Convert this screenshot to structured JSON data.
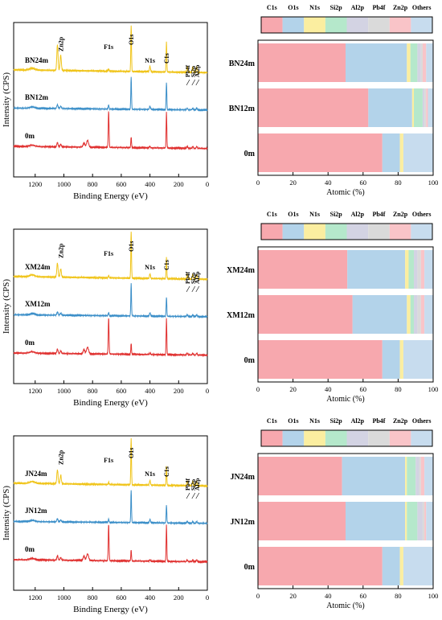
{
  "chart_data": [
    {
      "type": "line",
      "xlabel": "Binding Energy (eV)",
      "ylabel": "Intensity (CPS)",
      "xlim": [
        1350,
        0
      ],
      "xticks": [
        1200,
        1000,
        800,
        600,
        400,
        200,
        0
      ],
      "peak_labels": [
        {
          "text": "Zn2p",
          "x": 1022
        },
        {
          "text": "F1s",
          "x": 688
        },
        {
          "text": "O1s",
          "x": 531
        },
        {
          "text": "N1s",
          "x": 400
        },
        {
          "text": "C1s",
          "x": 285
        },
        {
          "text": "Pb4f",
          "x": 140
        },
        {
          "text": "Si2p",
          "x": 102
        },
        {
          "text": "Al2p",
          "x": 74
        }
      ],
      "series": [
        {
          "name": "BN24m",
          "color": "#f0c419",
          "peaks": {
            "zn": 0.55,
            "f": 0.05,
            "o": 1.0,
            "n": 0.12,
            "c": 0.65,
            "small": 0.12
          }
        },
        {
          "name": "BN12m",
          "color": "#3a8ec8",
          "peaks": {
            "zn": 0.12,
            "f": 0.12,
            "o": 1.0,
            "n": 0.1,
            "c": 0.85,
            "small": 0.05
          }
        },
        {
          "name": "0m",
          "color": "#e0302f",
          "peaks": {
            "zn": 0.12,
            "f": 1.0,
            "o": 0.3,
            "n": 0.04,
            "c": 1.0,
            "small": 0.05
          }
        }
      ]
    },
    {
      "type": "bar",
      "stacked": true,
      "xlabel": "Atomic (%)",
      "xlim": [
        0,
        100
      ],
      "xticks": [
        0,
        20,
        40,
        60,
        80,
        100
      ],
      "legend": [
        "C1s",
        "O1s",
        "N1s",
        "Si2p",
        "Al2p",
        "Pb4f",
        "Zn2p",
        "Others"
      ],
      "colors": [
        "#f7a8ae",
        "#b3d3ea",
        "#fbeea0",
        "#b5e8cb",
        "#d3d3e3",
        "#dadada",
        "#f9c4c8",
        "#c7dcee"
      ],
      "categories": [
        "BN24m",
        "BN12m",
        "0m"
      ],
      "series": [
        {
          "name": "C1s",
          "values": [
            50,
            63,
            71
          ]
        },
        {
          "name": "O1s",
          "values": [
            35,
            25,
            10
          ]
        },
        {
          "name": "N1s",
          "values": [
            2,
            1,
            2
          ]
        },
        {
          "name": "Si2p",
          "values": [
            4,
            5,
            0
          ]
        },
        {
          "name": "Al2p",
          "values": [
            2,
            1,
            0
          ]
        },
        {
          "name": "Pb4f",
          "values": [
            1,
            1,
            0
          ]
        },
        {
          "name": "Zn2p",
          "values": [
            2,
            1,
            0
          ]
        },
        {
          "name": "Others",
          "values": [
            4,
            3,
            17
          ]
        }
      ]
    },
    {
      "type": "line",
      "xlabel": "Binding Energy (eV)",
      "ylabel": "Intensity (CPS)",
      "xlim": [
        1350,
        0
      ],
      "xticks": [
        1200,
        1000,
        800,
        600,
        400,
        200,
        0
      ],
      "peak_labels": [
        {
          "text": "Zn2p",
          "x": 1022
        },
        {
          "text": "F1s",
          "x": 688
        },
        {
          "text": "O1s",
          "x": 531
        },
        {
          "text": "N1s",
          "x": 400
        },
        {
          "text": "C1s",
          "x": 285
        },
        {
          "text": "Pb4f",
          "x": 140
        },
        {
          "text": "Si2p",
          "x": 102
        },
        {
          "text": "Al2p",
          "x": 74
        }
      ],
      "series": [
        {
          "name": "XM24m",
          "color": "#f0c419",
          "peaks": {
            "zn": 0.3,
            "f": 0.05,
            "o": 1.0,
            "n": 0.1,
            "c": 0.45,
            "small": 0.1
          }
        },
        {
          "name": "XM12m",
          "color": "#3a8ec8",
          "peaks": {
            "zn": 0.1,
            "f": 0.1,
            "o": 1.0,
            "n": 0.1,
            "c": 0.6,
            "small": 0.05
          }
        },
        {
          "name": "0m",
          "color": "#e0302f",
          "peaks": {
            "zn": 0.12,
            "f": 1.0,
            "o": 0.3,
            "n": 0.04,
            "c": 1.0,
            "small": 0.05
          }
        }
      ]
    },
    {
      "type": "bar",
      "stacked": true,
      "xlabel": "Atomic (%)",
      "xlim": [
        0,
        100
      ],
      "xticks": [
        0,
        20,
        40,
        60,
        80,
        100
      ],
      "legend": [
        "C1s",
        "O1s",
        "N1s",
        "Si2p",
        "Al2p",
        "Pb4f",
        "Zn2p",
        "Others"
      ],
      "colors": [
        "#f7a8ae",
        "#b3d3ea",
        "#fbeea0",
        "#b5e8cb",
        "#d3d3e3",
        "#dadada",
        "#f9c4c8",
        "#c7dcee"
      ],
      "categories": [
        "XM24m",
        "XM12m",
        "0m"
      ],
      "series": [
        {
          "name": "C1s",
          "values": [
            51,
            54,
            71
          ]
        },
        {
          "name": "O1s",
          "values": [
            33,
            31,
            10
          ]
        },
        {
          "name": "N1s",
          "values": [
            2,
            2,
            2
          ]
        },
        {
          "name": "Si2p",
          "values": [
            3,
            2,
            0
          ]
        },
        {
          "name": "Al2p",
          "values": [
            2,
            2,
            0
          ]
        },
        {
          "name": "Pb4f",
          "values": [
            2,
            2,
            0
          ]
        },
        {
          "name": "Zn2p",
          "values": [
            2,
            2,
            0
          ]
        },
        {
          "name": "Others",
          "values": [
            5,
            5,
            17
          ]
        }
      ]
    },
    {
      "type": "line",
      "xlabel": "Binding Energy (eV)",
      "ylabel": "Intensity (CPS)",
      "xlim": [
        1350,
        0
      ],
      "xticks": [
        1200,
        1000,
        800,
        600,
        400,
        200,
        0
      ],
      "peak_labels": [
        {
          "text": "Zn2p",
          "x": 1022
        },
        {
          "text": "F1s",
          "x": 688
        },
        {
          "text": "O1s",
          "x": 531
        },
        {
          "text": "N1s",
          "x": 400
        },
        {
          "text": "C1s",
          "x": 285
        },
        {
          "text": "Pb4f",
          "x": 140
        },
        {
          "text": "Si2p",
          "x": 102
        },
        {
          "text": "Al2p",
          "x": 74
        }
      ],
      "series": [
        {
          "name": "JN24m",
          "color": "#f0c419",
          "peaks": {
            "zn": 0.3,
            "f": 0.05,
            "o": 1.0,
            "n": 0.1,
            "c": 0.4,
            "small": 0.1
          }
        },
        {
          "name": "JN12m",
          "color": "#3a8ec8",
          "peaks": {
            "zn": 0.1,
            "f": 0.1,
            "o": 1.0,
            "n": 0.1,
            "c": 0.55,
            "small": 0.05
          }
        },
        {
          "name": "0m",
          "color": "#e0302f",
          "peaks": {
            "zn": 0.12,
            "f": 1.0,
            "o": 0.3,
            "n": 0.04,
            "c": 1.0,
            "small": 0.05
          }
        }
      ]
    },
    {
      "type": "bar",
      "stacked": true,
      "xlabel": "Atomic (%)",
      "xlim": [
        0,
        100
      ],
      "xticks": [
        0,
        20,
        40,
        60,
        80,
        100
      ],
      "legend": [
        "C1s",
        "O1s",
        "N1s",
        "Si2p",
        "Al2p",
        "Pb4f",
        "Zn2p",
        "Others"
      ],
      "colors": [
        "#f7a8ae",
        "#b3d3ea",
        "#fbeea0",
        "#b5e8cb",
        "#d3d3e3",
        "#dadada",
        "#f9c4c8",
        "#c7dcee"
      ],
      "categories": [
        "JN24m",
        "JN12m",
        "0m"
      ],
      "series": [
        {
          "name": "C1s",
          "values": [
            48,
            50,
            71
          ]
        },
        {
          "name": "O1s",
          "values": [
            36,
            34,
            10
          ]
        },
        {
          "name": "N1s",
          "values": [
            1,
            1,
            2
          ]
        },
        {
          "name": "Si2p",
          "values": [
            5,
            6,
            0
          ]
        },
        {
          "name": "Al2p",
          "values": [
            2,
            3,
            0
          ]
        },
        {
          "name": "Pb4f",
          "values": [
            1,
            1,
            0
          ]
        },
        {
          "name": "Zn2p",
          "values": [
            2,
            1,
            0
          ]
        },
        {
          "name": "Others",
          "values": [
            5,
            4,
            17
          ]
        }
      ]
    }
  ]
}
